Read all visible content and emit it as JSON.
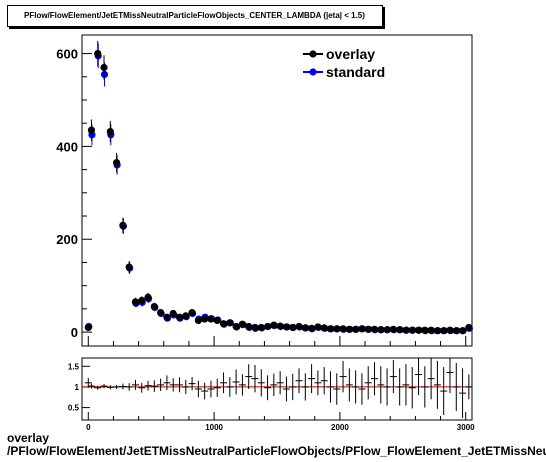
{
  "title": "PFlow/FlowElement/JetETMissNeutralParticleFlowObjects_CENTER_LAMBDA (|eta| < 1.5)",
  "footer": {
    "line1": "overlay",
    "line2": "/PFlow/FlowElement/JetETMissNeutralParticleFlowObjects/PFlow_FlowElement_JetETMissNeutralParticleFlowObjects_CENTER_LAMBDA"
  },
  "colors": {
    "overlay": "#000000",
    "standard": "#0000ff",
    "ratio_line": "#cc0000"
  },
  "chart_data": [
    {
      "type": "scatter",
      "xlim": [
        -50,
        3050
      ],
      "ylim": [
        -30,
        640
      ],
      "yticks": [
        0,
        200,
        400,
        600
      ],
      "legend_position": "top-right",
      "legend": [
        "overlay",
        "standard"
      ],
      "x": [
        0,
        25,
        75,
        125,
        175,
        225,
        275,
        325,
        375,
        425,
        475,
        525,
        575,
        625,
        675,
        725,
        775,
        825,
        875,
        925,
        975,
        1025,
        1075,
        1125,
        1175,
        1225,
        1275,
        1325,
        1375,
        1425,
        1475,
        1525,
        1575,
        1625,
        1675,
        1725,
        1775,
        1825,
        1875,
        1925,
        1975,
        2025,
        2075,
        2125,
        2175,
        2225,
        2275,
        2325,
        2375,
        2425,
        2475,
        2525,
        2575,
        2625,
        2675,
        2725,
        2775,
        2825,
        2875,
        2925,
        2975,
        3025
      ],
      "series": [
        {
          "name": "overlay",
          "values": [
            10,
            435,
            600,
            570,
            432,
            365,
            230,
            140,
            65,
            68,
            75,
            55,
            42,
            32,
            40,
            32,
            35,
            42,
            25,
            28,
            28,
            25,
            18,
            20,
            12,
            17,
            12,
            10,
            10,
            12,
            15,
            13,
            11,
            10,
            12,
            9,
            8,
            11,
            9,
            7,
            7,
            7,
            6,
            6,
            7,
            6,
            6,
            5,
            5,
            6,
            5,
            4,
            4,
            4,
            4,
            4,
            3,
            3,
            4,
            3,
            3,
            10
          ]
        },
        {
          "name": "standard",
          "values": [
            12,
            425,
            595,
            555,
            425,
            360,
            228,
            138,
            62,
            64,
            72,
            53,
            40,
            30,
            37,
            30,
            33,
            40,
            28,
            32,
            29,
            26,
            17,
            20,
            11,
            16,
            10,
            8,
            9,
            12,
            14,
            12,
            11,
            10,
            11,
            9,
            7,
            10,
            8,
            7,
            7,
            6,
            6,
            6,
            7,
            6,
            5,
            5,
            5,
            5,
            5,
            4,
            4,
            4,
            3,
            3,
            3,
            3,
            3,
            3,
            3,
            8
          ]
        }
      ]
    },
    {
      "type": "scatter",
      "xlim": [
        -50,
        3050
      ],
      "ylim": [
        0.2,
        1.7
      ],
      "yticks": [
        "0.5",
        "1",
        "1.5"
      ],
      "xticks": [
        "0",
        "1000",
        "2000",
        "3000"
      ],
      "reference_line": 1.0,
      "x": [
        0,
        25,
        75,
        125,
        175,
        225,
        275,
        325,
        375,
        425,
        475,
        525,
        575,
        625,
        675,
        725,
        775,
        825,
        875,
        925,
        975,
        1025,
        1075,
        1125,
        1175,
        1225,
        1275,
        1325,
        1375,
        1425,
        1475,
        1525,
        1575,
        1625,
        1675,
        1725,
        1775,
        1825,
        1875,
        1925,
        1975,
        2025,
        2075,
        2125,
        2175,
        2225,
        2275,
        2325,
        2375,
        2425,
        2475,
        2525,
        2575,
        2625,
        2675,
        2725,
        2775,
        2825,
        2875,
        2925,
        2975,
        3025
      ],
      "values": [
        1.1,
        1.02,
        0.98,
        1.02,
        0.99,
        1.0,
        1.01,
        1.0,
        1.05,
        0.98,
        1.03,
        1.02,
        1.05,
        1.1,
        1.05,
        1.05,
        1.0,
        1.08,
        0.95,
        0.9,
        0.95,
        0.98,
        1.1,
        1.0,
        1.12,
        1.05,
        1.25,
        1.2,
        1.1,
        0.98,
        1.05,
        1.1,
        0.95,
        1.0,
        1.15,
        1.0,
        1.2,
        1.1,
        1.15,
        1.0,
        0.95,
        1.25,
        1.05,
        1.0,
        0.95,
        1.1,
        1.2,
        1.05,
        1.0,
        1.25,
        1.0,
        1.05,
        0.98,
        1.3,
        1.0,
        1.2,
        1.05,
        0.9,
        1.35,
        1.0,
        0.85,
        1.0
      ],
      "errors": [
        0.12,
        0.06,
        0.05,
        0.05,
        0.05,
        0.05,
        0.07,
        0.09,
        0.12,
        0.12,
        0.12,
        0.14,
        0.15,
        0.18,
        0.16,
        0.18,
        0.17,
        0.16,
        0.2,
        0.2,
        0.2,
        0.22,
        0.25,
        0.24,
        0.3,
        0.26,
        0.3,
        0.33,
        0.33,
        0.3,
        0.27,
        0.28,
        0.3,
        0.32,
        0.3,
        0.33,
        0.35,
        0.3,
        0.33,
        0.38,
        0.38,
        0.38,
        0.4,
        0.4,
        0.38,
        0.4,
        0.4,
        0.45,
        0.45,
        0.4,
        0.45,
        0.5,
        0.5,
        0.5,
        0.5,
        0.5,
        0.58,
        0.58,
        0.5,
        0.58,
        0.6,
        0.3
      ]
    }
  ]
}
